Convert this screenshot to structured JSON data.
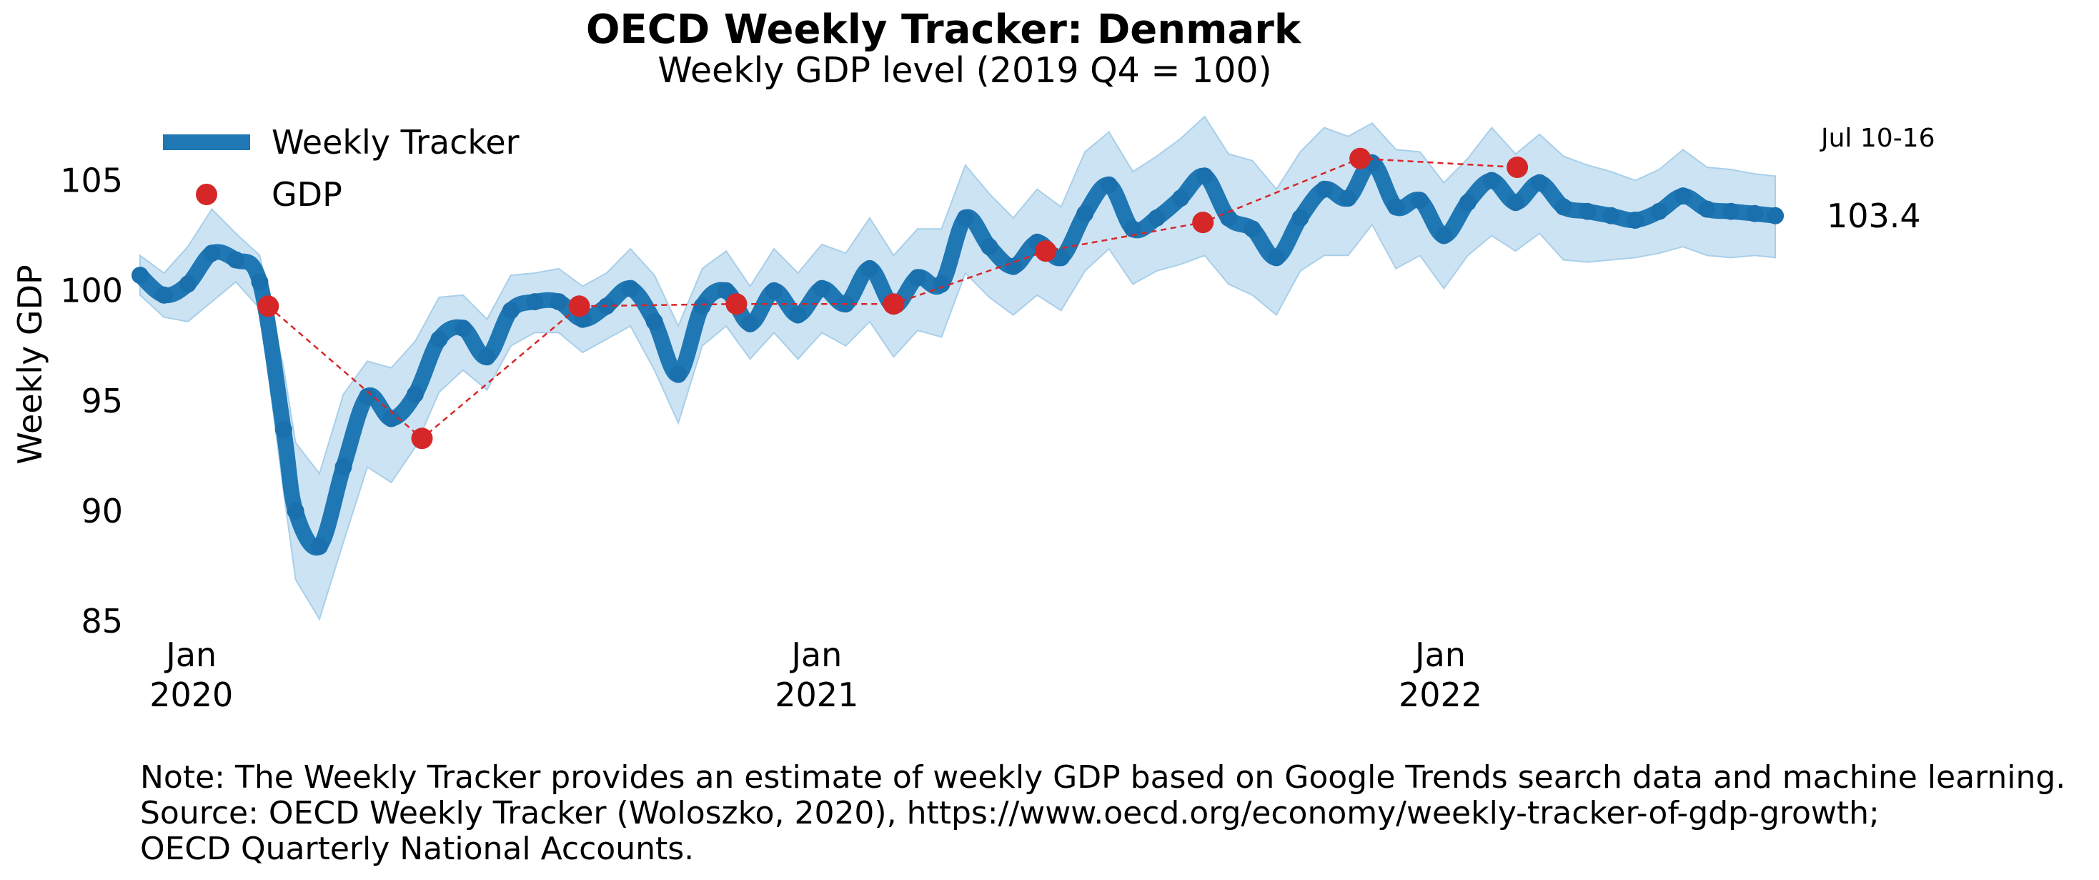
{
  "chart_data": {
    "type": "line",
    "title": "OECD Weekly Tracker: Denmark",
    "subtitle": "Weekly GDP level (2019 Q4 = 100)",
    "ylabel": "Weekly GDP",
    "xlabel": "",
    "ylim": [
      84,
      108
    ],
    "xlim": [
      "2019-12-02",
      "2022-07-31"
    ],
    "y_ticks": [
      85,
      90,
      95,
      100,
      105
    ],
    "x_ticks": [
      {
        "date": "2020-01-01",
        "label": [
          "Jan",
          "2020"
        ]
      },
      {
        "date": "2021-01-01",
        "label": [
          "Jan",
          "2021"
        ]
      },
      {
        "date": "2022-01-01",
        "label": [
          "Jan",
          "2022"
        ]
      }
    ],
    "grid": false,
    "legend": {
      "placement": "top-left",
      "entries": [
        "Weekly Tracker",
        "GDP"
      ]
    },
    "colors": {
      "tracker": "#1f77b4",
      "band": "#c9e2f3",
      "gdp": "#d62728"
    },
    "series": [
      {
        "name": "Weekly Tracker",
        "kind": "line",
        "x": [
          "2019-12-02",
          "2019-12-16",
          "2019-12-30",
          "2020-01-13",
          "2020-01-27",
          "2020-02-10",
          "2020-02-24",
          "2020-03-02",
          "2020-03-16",
          "2020-03-30",
          "2020-04-13",
          "2020-04-27",
          "2020-05-11",
          "2020-05-25",
          "2020-06-08",
          "2020-06-22",
          "2020-07-06",
          "2020-07-20",
          "2020-08-03",
          "2020-08-17",
          "2020-08-31",
          "2020-09-14",
          "2020-09-28",
          "2020-10-12",
          "2020-10-26",
          "2020-11-09",
          "2020-11-23",
          "2020-12-07",
          "2020-12-21",
          "2021-01-04",
          "2021-01-18",
          "2021-02-01",
          "2021-02-15",
          "2021-03-01",
          "2021-03-15",
          "2021-03-29",
          "2021-04-12",
          "2021-04-26",
          "2021-05-10",
          "2021-05-24",
          "2021-06-07",
          "2021-06-21",
          "2021-07-05",
          "2021-07-19",
          "2021-08-02",
          "2021-08-16",
          "2021-08-30",
          "2021-09-13",
          "2021-09-27",
          "2021-10-11",
          "2021-10-25",
          "2021-11-08",
          "2021-11-22",
          "2021-12-06",
          "2021-12-20",
          "2022-01-03",
          "2022-01-17",
          "2022-01-31",
          "2022-02-14",
          "2022-02-28",
          "2022-03-14",
          "2022-03-28",
          "2022-04-11",
          "2022-04-25",
          "2022-05-09",
          "2022-05-23",
          "2022-06-06",
          "2022-06-20",
          "2022-07-04",
          "2022-07-16"
        ],
        "values": [
          100.7,
          99.8,
          100.3,
          101.7,
          101.4,
          100.4,
          93.7,
          90.0,
          88.4,
          92.0,
          95.2,
          94.2,
          95.3,
          97.8,
          98.3,
          97.0,
          99.1,
          99.5,
          99.5,
          98.7,
          99.3,
          100.1,
          98.6,
          96.2,
          99.3,
          100.0,
          98.5,
          100.0,
          98.9,
          100.1,
          99.4,
          101.0,
          99.3,
          100.6,
          100.3,
          103.3,
          102.0,
          101.1,
          102.2,
          101.5,
          103.5,
          104.8,
          102.8,
          103.3,
          104.2,
          105.2,
          103.3,
          102.8,
          101.5,
          103.3,
          104.6,
          104.2,
          105.8,
          103.8,
          104.1,
          102.5,
          104.0,
          105.0,
          104.0,
          104.9,
          103.8,
          103.6,
          103.4,
          103.2,
          103.6,
          104.3,
          103.7,
          103.6,
          103.5,
          103.4
        ],
        "lower": [
          99.8,
          98.8,
          98.6,
          99.5,
          100.4,
          99.2,
          90.9,
          86.9,
          85.1,
          88.6,
          92.0,
          91.3,
          92.9,
          95.4,
          96.4,
          95.5,
          97.5,
          98.1,
          98.1,
          97.2,
          97.8,
          98.4,
          96.4,
          94.0,
          97.5,
          98.4,
          96.9,
          98.1,
          96.9,
          98.1,
          97.5,
          98.6,
          97.0,
          98.2,
          97.9,
          100.8,
          99.7,
          98.9,
          99.8,
          99.1,
          100.9,
          101.9,
          100.3,
          100.9,
          101.2,
          101.6,
          100.3,
          99.8,
          98.9,
          100.9,
          101.6,
          101.6,
          103.0,
          101.0,
          101.6,
          100.1,
          101.6,
          102.5,
          101.8,
          102.6,
          101.4,
          101.3,
          101.4,
          101.5,
          101.7,
          102.0,
          101.6,
          101.5,
          101.6,
          101.5
        ],
        "upper": [
          101.6,
          100.8,
          102.0,
          103.7,
          102.6,
          101.6,
          96.5,
          93.1,
          91.7,
          95.3,
          96.8,
          96.5,
          97.7,
          99.7,
          99.8,
          98.7,
          100.7,
          100.8,
          101.0,
          100.2,
          100.8,
          101.9,
          100.7,
          98.4,
          101.0,
          101.8,
          100.2,
          101.9,
          100.8,
          102.1,
          101.7,
          103.3,
          101.6,
          102.8,
          102.8,
          105.7,
          104.4,
          103.3,
          104.6,
          103.8,
          106.3,
          107.2,
          105.4,
          106.1,
          106.9,
          107.9,
          106.2,
          105.9,
          104.6,
          106.3,
          107.4,
          107.0,
          107.6,
          106.4,
          106.3,
          104.9,
          106.0,
          107.4,
          106.2,
          107.1,
          106.1,
          105.7,
          105.4,
          105.0,
          105.5,
          106.4,
          105.6,
          105.5,
          105.3,
          105.2
        ]
      },
      {
        "name": "GDP",
        "kind": "scatter-dashed",
        "x": [
          "2020-02-15",
          "2020-05-15",
          "2020-08-15",
          "2020-11-15",
          "2021-02-15",
          "2021-05-15",
          "2021-08-15",
          "2021-11-15",
          "2022-02-15"
        ],
        "values": [
          99.3,
          93.3,
          99.3,
          99.4,
          99.4,
          101.8,
          103.1,
          106.0,
          105.6
        ]
      }
    ],
    "annotations": [
      {
        "text": "Jul 10-16",
        "x": "2022-07-16",
        "y": 106.0
      },
      {
        "text": "103.4",
        "x": "2022-07-16",
        "y": 103.4
      }
    ]
  },
  "notes": [
    "Note: The Weekly Tracker provides an estimate of weekly GDP based on Google Trends search data and machine learning.",
    "Source: OECD Weekly Tracker (Woloszko, 2020), https://www.oecd.org/economy/weekly-tracker-of-gdp-growth;",
    "OECD Quarterly National Accounts."
  ]
}
